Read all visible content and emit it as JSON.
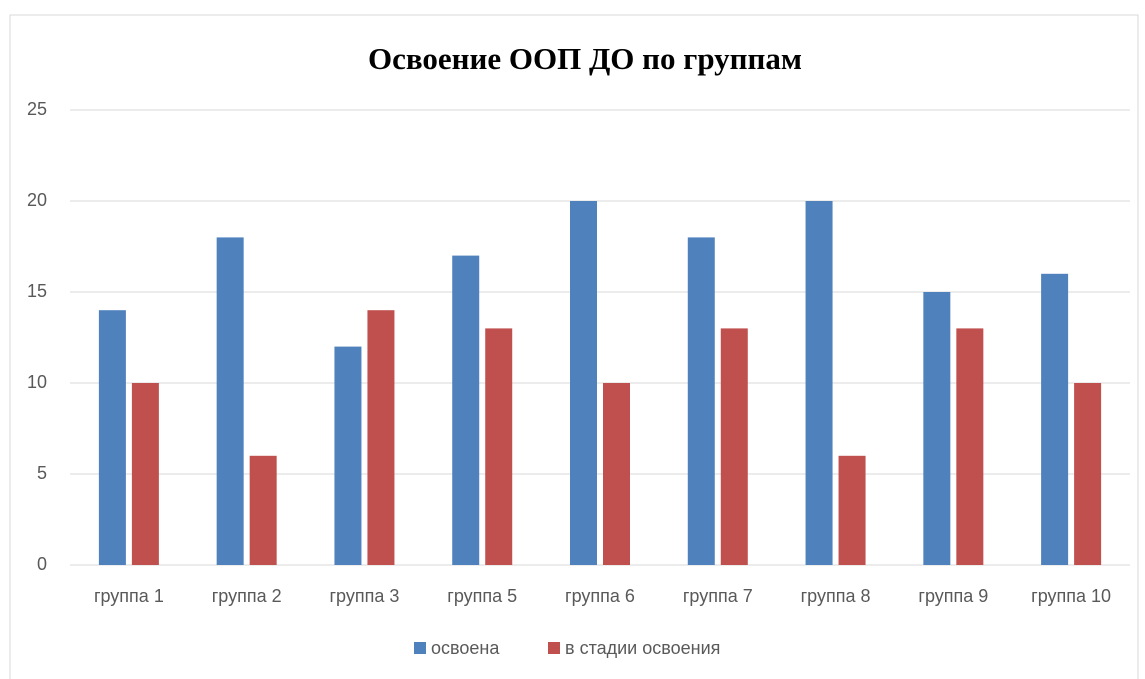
{
  "chart_data": {
    "type": "bar",
    "title": "Освоение ООП ДО  по группам",
    "categories": [
      "группа 1",
      "группа 2",
      "группа 3",
      "группа 5",
      "группа 6",
      "группа 7",
      "группа 8",
      "группа 9",
      "группа 10"
    ],
    "series": [
      {
        "name": "освоена",
        "color": "#4f81bd",
        "values": [
          14,
          18,
          12,
          17,
          20,
          18,
          20,
          15,
          16
        ]
      },
      {
        "name": "в стадии освоения",
        "color": "#c0504d",
        "values": [
          10,
          6,
          14,
          13,
          10,
          13,
          6,
          13,
          10
        ]
      }
    ],
    "ylim": [
      0,
      25
    ],
    "yticks": [
      0,
      5,
      10,
      15,
      20,
      25
    ],
    "grid": true,
    "legend": "bottom"
  }
}
